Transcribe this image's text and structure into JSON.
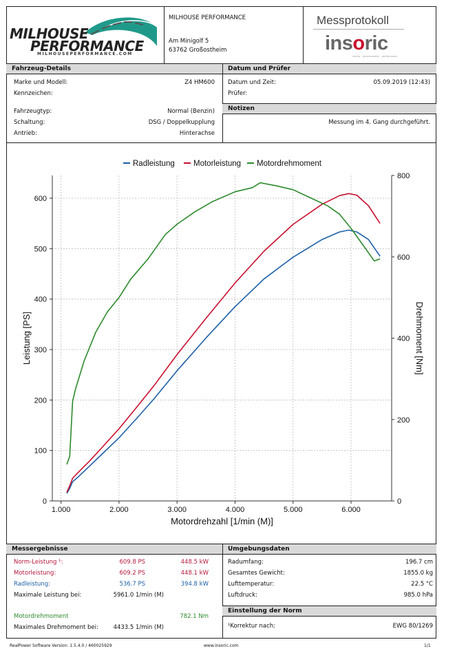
{
  "header": {
    "logo_line1": "MILHOUSE",
    "logo_line2": "PERFORMANCE",
    "logo_url": "MILHOUSEPERFORMANCE.COM",
    "company": "MILHOUSE PERFORMANCE",
    "street": "Am Minigolf 5",
    "city": "63762 Großostheim",
    "protocol_title": "Messprotokoll",
    "brand_pre": "ins",
    "brand_o": "o",
    "brand_post": "ric",
    "brand_tagline": "inertia · dynamometer · performance"
  },
  "vehicle": {
    "heading": "Fahrzeug-Details",
    "rows": [
      {
        "label": "Marke und Modell:",
        "value": "Z4 HM600"
      },
      {
        "label": "Kennzeichen:",
        "value": ""
      },
      {
        "label": "Fahrzeugtyp:",
        "value": "Normal (Benzin)"
      },
      {
        "label": "Schaltung:",
        "value": "DSG / Doppelkupplung"
      },
      {
        "label": "Antrieb:",
        "value": "Hinterachse"
      }
    ]
  },
  "datum": {
    "heading": "Datum und Prüfer",
    "rows": [
      {
        "label": "Datum und Zeit:",
        "value": "05.09.2019 (12:43)"
      },
      {
        "label": "Prüfer:",
        "value": ""
      }
    ]
  },
  "notizen": {
    "heading": "Notizen",
    "text": "Messung im 4. Gang durchgeführt."
  },
  "chart_data": {
    "type": "line",
    "legend_position": "top",
    "xlabel": "Motordrehzahl [1/min (M)]",
    "ylabel": "Leistung [PS]",
    "y2label": "Drehmoment [Nm]",
    "xlim": [
      850,
      6700
    ],
    "ylim": [
      0,
      645
    ],
    "y2lim": [
      0,
      800
    ],
    "x_ticks": [
      1000,
      2000,
      3000,
      4000,
      5000,
      6000
    ],
    "x_tick_labels": [
      "1.000",
      "2.000",
      "3.000",
      "4.000",
      "5.000",
      "6.000"
    ],
    "y_ticks": [
      0,
      100,
      200,
      300,
      400,
      500,
      600
    ],
    "y2_ticks": [
      0,
      200,
      400,
      600,
      800
    ],
    "grid": true,
    "series": [
      {
        "name": "Radleistung",
        "color": "#1c5fa8",
        "axis": "left",
        "x": [
          1100,
          1150,
          1200,
          1300,
          1500,
          1700,
          2000,
          2300,
          2600,
          3000,
          3500,
          4000,
          4500,
          5000,
          5500,
          5800,
          5961,
          6100,
          6300,
          6500
        ],
        "values": [
          15,
          25,
          38,
          48,
          70,
          92,
          125,
          163,
          202,
          258,
          323,
          385,
          440,
          483,
          518,
          533,
          536.7,
          533,
          518,
          485
        ]
      },
      {
        "name": "Motorleistung",
        "color": "#c8102e",
        "axis": "left",
        "x": [
          1100,
          1150,
          1200,
          1300,
          1500,
          1700,
          2000,
          2300,
          2600,
          3000,
          3500,
          4000,
          4500,
          5000,
          5500,
          5800,
          5961,
          6100,
          6300,
          6500
        ],
        "values": [
          17,
          30,
          45,
          57,
          80,
          105,
          143,
          185,
          228,
          290,
          362,
          432,
          495,
          548,
          588,
          605,
          609.2,
          606,
          585,
          550
        ]
      },
      {
        "name": "Motordrehmoment",
        "color": "#2b8a2b",
        "axis": "right",
        "x": [
          1100,
          1150,
          1200,
          1250,
          1400,
          1600,
          1800,
          2000,
          2200,
          2500,
          2800,
          3000,
          3300,
          3600,
          4000,
          4300,
          4433.5,
          4700,
          5000,
          5300,
          5600,
          5800,
          6000,
          6200,
          6400,
          6500
        ],
        "values": [
          90,
          110,
          245,
          275,
          345,
          415,
          465,
          500,
          545,
          595,
          655,
          680,
          710,
          735,
          760,
          770,
          782.1,
          775,
          765,
          745,
          725,
          705,
          670,
          630,
          590,
          595
        ]
      }
    ]
  },
  "results": {
    "heading": "Messergebnisse",
    "rows": [
      {
        "label": "Norm-Leistung ¹:",
        "ps": "609.8 PS",
        "kw": "448.5 kW"
      },
      {
        "label": "Motorleistung:",
        "ps": "609.2 PS",
        "kw": "448.1 kW"
      },
      {
        "label": "Radleistung:",
        "ps": "536.7 PS",
        "kw": "394.8 kW"
      }
    ],
    "max_power_label": "Maximale Leistung bei:",
    "max_power_value": "5961.0 1/min (M)",
    "torque_label": "Motordrehmoment",
    "torque_value": "782.1 Nm",
    "max_torque_label": "Maximales Drehmoment bei:",
    "max_torque_value": "4433.5 1/min (M)"
  },
  "ambient": {
    "heading": "Umgebungsdaten",
    "rows": [
      {
        "label": "Radumfang:",
        "value": "196.7 cm"
      },
      {
        "label": "Gesamtes Gewicht:",
        "value": "1855.0 kg"
      },
      {
        "label": "Lufttemperatur:",
        "value": "22.5 °C"
      },
      {
        "label": "Luftdruck:",
        "value": "985.0 hPa"
      }
    ]
  },
  "norm": {
    "heading": "Einstellung der Norm",
    "label": "¹Korrektur nach:",
    "value": "EWG 80/1269"
  },
  "footer": {
    "software": "RealPower Software Version: 1.5.4.0 / 460025929",
    "website": "www.insoric.com",
    "page": "1/1"
  },
  "colors": {
    "radleistung": "#1c5fa8",
    "motorleistung": "#c8102e",
    "motordrehmoment": "#2b8a2b",
    "section_header": "#d9d9d9"
  }
}
